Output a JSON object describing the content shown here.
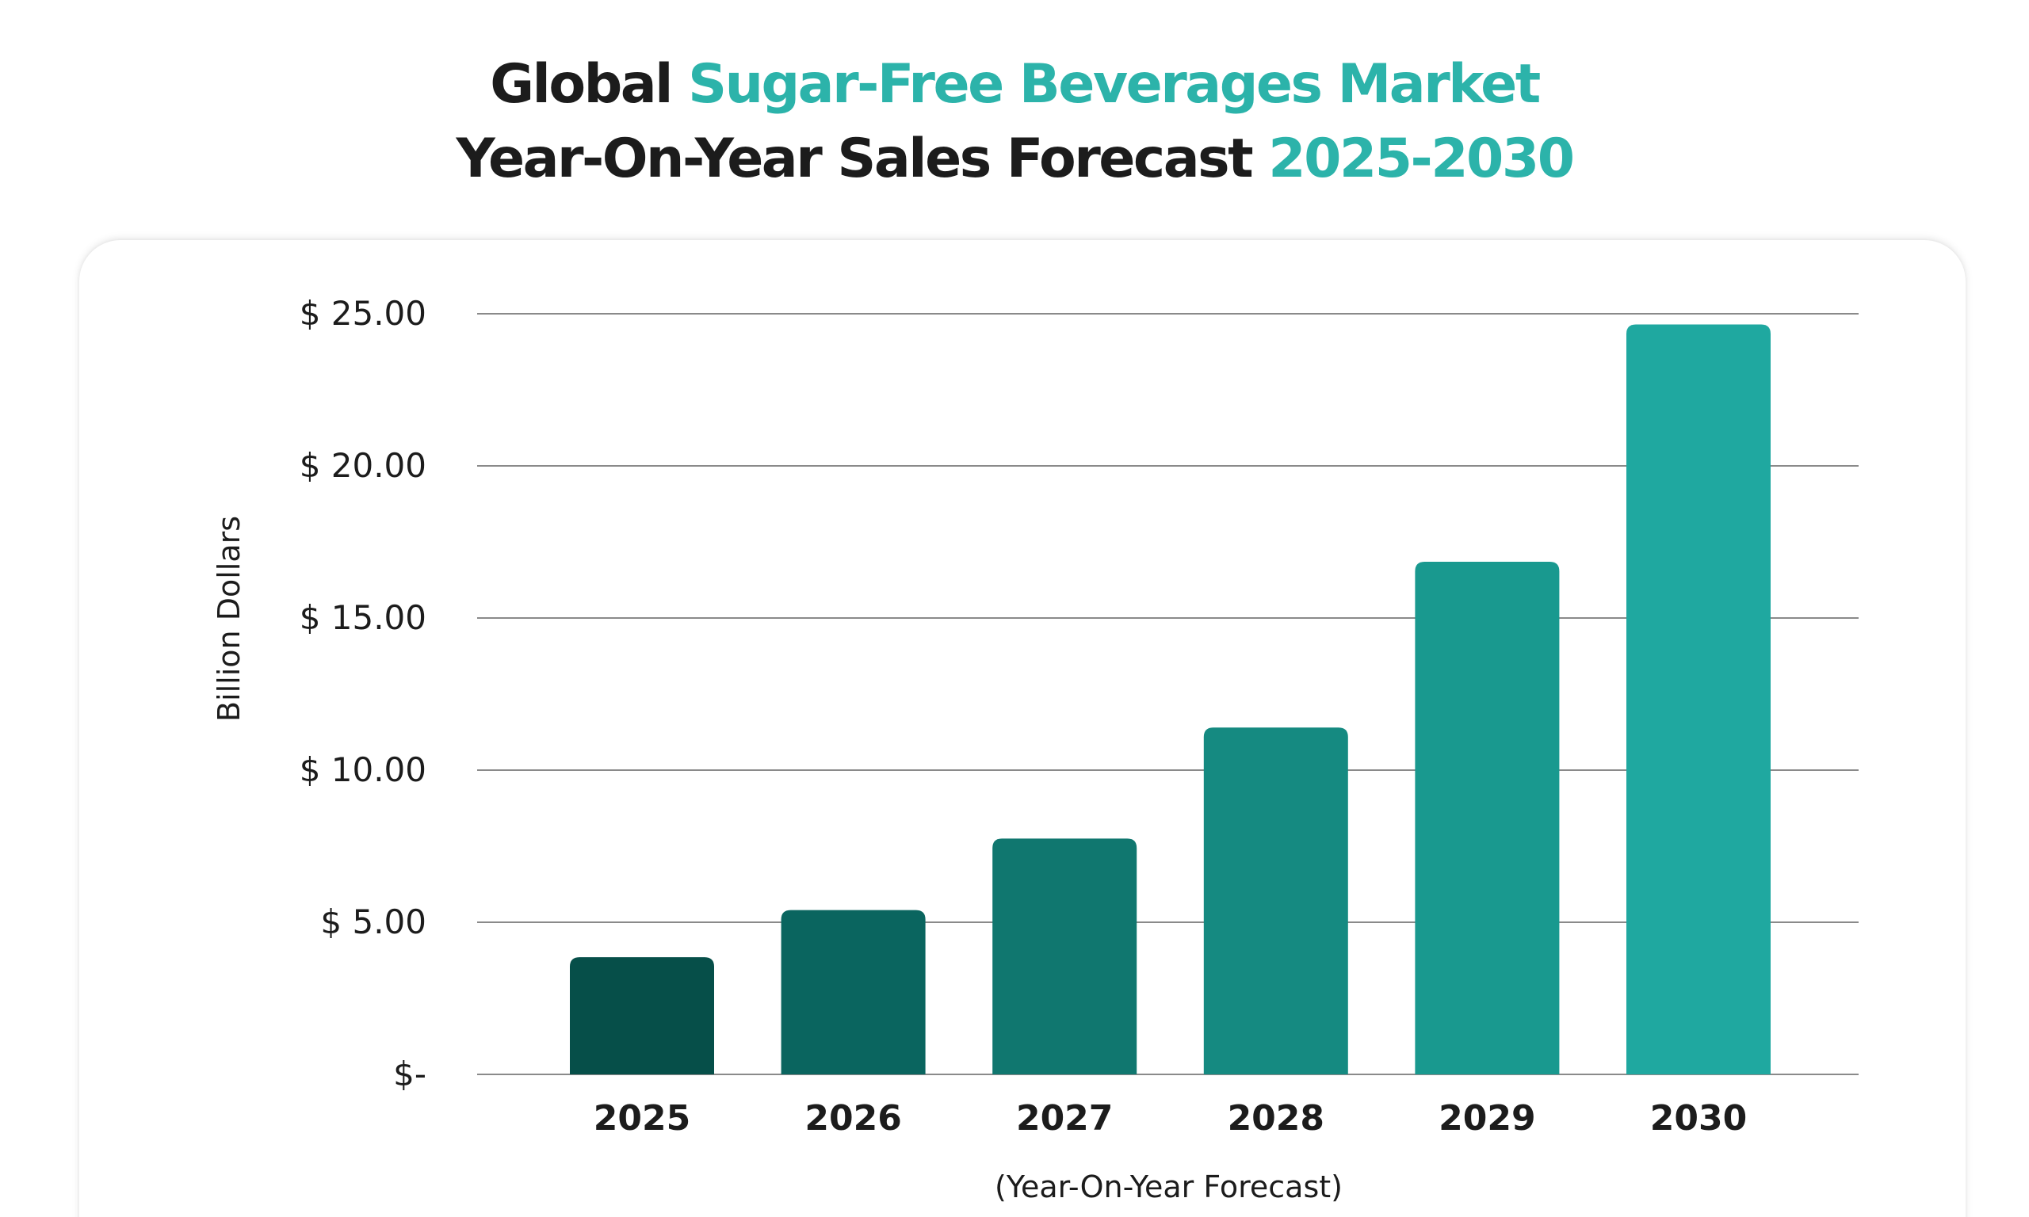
{
  "title": {
    "line1": [
      {
        "text": "Global ",
        "accent": false
      },
      {
        "text": "Sugar-Free Beverages Market",
        "accent": true
      }
    ],
    "line2": [
      {
        "text": "Year-On-Year Sales Forecast ",
        "accent": false
      },
      {
        "text": "2025-2030",
        "accent": true
      }
    ]
  },
  "colors": {
    "title_dark": "#1c1c1c",
    "title_accent": "#2cb3aa",
    "gridline": "#8a8a8a",
    "bars": [
      "#064f49",
      "#0a655f",
      "#10776f",
      "#158a81",
      "#19998f",
      "#1fa8a0"
    ]
  },
  "chart_data": {
    "type": "bar",
    "title": "Global Sugar-Free Beverages Market Year-On-Year Sales Forecast 2025-2030",
    "categories": [
      "2025",
      "2026",
      "2027",
      "2028",
      "2029",
      "2030"
    ],
    "values": [
      3.85,
      5.4,
      7.75,
      11.4,
      16.85,
      24.65
    ],
    "ylabel": "Billion Dollars",
    "xlabel": "(Year-On-Year Forecast)",
    "ylim": [
      0,
      25
    ],
    "yticks": [
      0,
      5,
      10,
      15,
      20,
      25
    ],
    "ytick_labels": [
      "$-",
      "$ 5.00",
      "$ 10.00",
      "$ 15.00",
      "$ 20.00",
      "$ 25.00"
    ],
    "grid": true,
    "legend": "none"
  }
}
